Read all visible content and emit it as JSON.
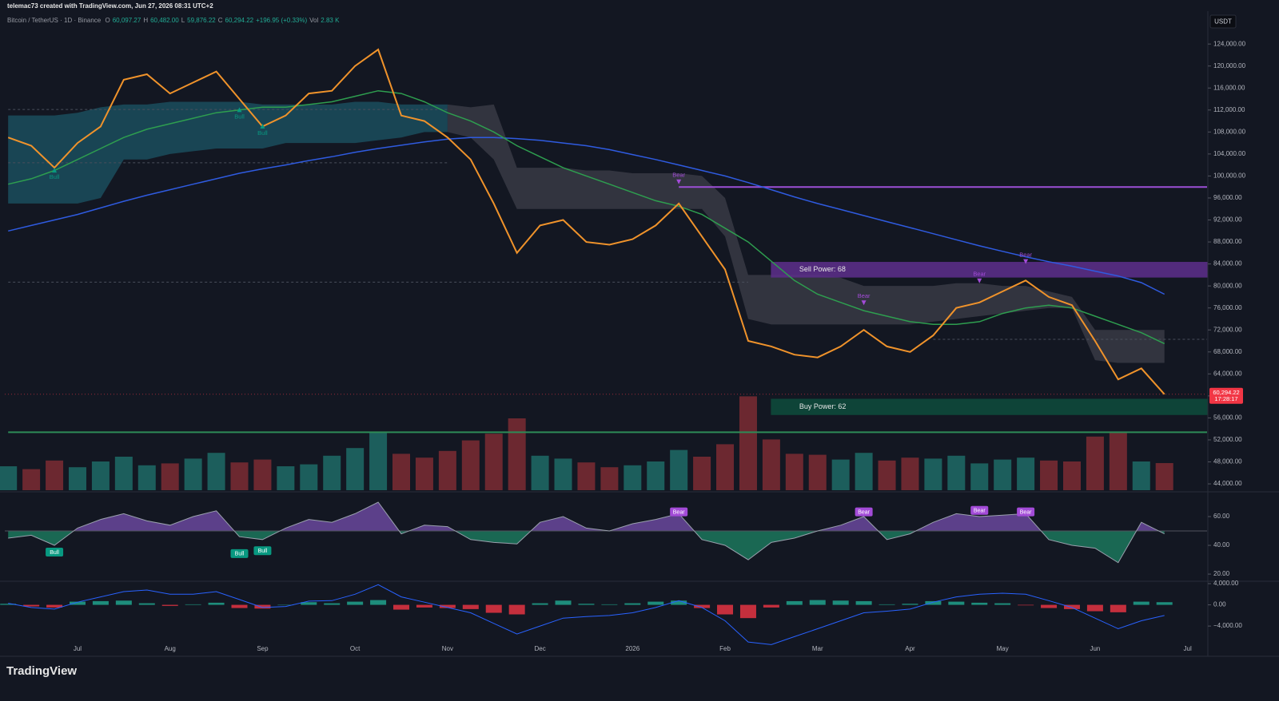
{
  "header": {
    "watermark": "telemac73 created with TradingView.com, Jun 27, 2026 08:31 UTC+2",
    "symbol": "Bitcoin / TetherUS · 1D · Binance",
    "ohlc": [
      {
        "label": "O",
        "value": "60,097.27"
      },
      {
        "label": "H",
        "value": "60,482.00"
      },
      {
        "label": "L",
        "value": "59,876.22"
      },
      {
        "label": "C",
        "value": "60,294.22"
      }
    ],
    "change": "+196.95 (+0.33%)",
    "volume_label": "Vol",
    "volume_value": "2.83 K"
  },
  "logo": "TradingView",
  "chart_data": [
    {
      "type": "line",
      "unit": "USDT",
      "categories": [
        null,
        null,
        null,
        "Jul",
        null,
        null,
        null,
        "Aug",
        null,
        null,
        null,
        "Sep",
        null,
        null,
        null,
        "Oct",
        null,
        null,
        null,
        "Nov",
        null,
        null,
        null,
        "Dec",
        null,
        null,
        null,
        "2026",
        null,
        null,
        null,
        "Feb",
        null,
        null,
        null,
        "Mar",
        null,
        null,
        null,
        "Apr",
        null,
        null,
        null,
        "May",
        null,
        null,
        null,
        "Jun",
        null,
        null,
        null,
        "Jul"
      ],
      "series": [
        {
          "color": "#f0932b",
          "values": [
            107000,
            105500,
            101500,
            106000,
            109000,
            117500,
            118500,
            115000,
            117000,
            119000,
            114000,
            109000,
            111000,
            115000,
            115500,
            120000,
            123000,
            111000,
            110000,
            107000,
            103000,
            95000,
            86000,
            91000,
            92000,
            88000,
            87500,
            88500,
            91000,
            95000,
            89000,
            83000,
            70000,
            69000,
            67500,
            67000,
            69000,
            72000,
            69000,
            68000,
            71000,
            76000,
            77000,
            79000,
            81000,
            78000,
            76500,
            70000,
            63000,
            65000,
            60300,
            null
          ]
        },
        {
          "color": "#2e9e4f",
          "values": [
            98500,
            99500,
            101000,
            103000,
            105000,
            107000,
            108500,
            109500,
            110500,
            111500,
            112000,
            112500,
            112500,
            113000,
            113500,
            114500,
            115500,
            115000,
            113500,
            111500,
            110000,
            108000,
            105500,
            103500,
            101500,
            100000,
            98500,
            97000,
            95500,
            94500,
            93000,
            90500,
            88000,
            84500,
            81000,
            78500,
            77000,
            75500,
            74500,
            73500,
            73000,
            73000,
            73500,
            75000,
            76000,
            76500,
            76000,
            74500,
            73000,
            71500,
            69500,
            null
          ]
        },
        {
          "color": "#2f5be0",
          "values": [
            90000,
            91000,
            92000,
            93000,
            94200,
            95400,
            96500,
            97500,
            98500,
            99500,
            100500,
            101300,
            102000,
            102800,
            103500,
            104300,
            105000,
            105600,
            106200,
            106700,
            107000,
            107000,
            106800,
            106500,
            106000,
            105500,
            104800,
            103900,
            103000,
            102000,
            101000,
            100000,
            98800,
            97500,
            96200,
            95000,
            93900,
            92800,
            91700,
            90600,
            89500,
            88400,
            87300,
            86300,
            85300,
            84400,
            83600,
            82700,
            81800,
            80600,
            78500,
            null
          ]
        }
      ],
      "bands": [
        {
          "color": "#1c5566",
          "upper": [
            111000,
            111000,
            111000,
            111500,
            112500,
            113000,
            113000,
            113500,
            113500,
            113500,
            113500,
            113000,
            113000,
            113000,
            113000,
            113500,
            113500,
            113000,
            113000,
            113000,
            null,
            null,
            null,
            null,
            null,
            null,
            null,
            null,
            null,
            null,
            null,
            null,
            null,
            null,
            null,
            null,
            null,
            null,
            null,
            null,
            null,
            null,
            null,
            null,
            null,
            null,
            null,
            null,
            null,
            null,
            null,
            null
          ],
          "lower": [
            95000,
            95000,
            95000,
            95000,
            96000,
            103000,
            103000,
            104000,
            104500,
            105000,
            105000,
            105000,
            106000,
            106000,
            106000,
            106000,
            106500,
            107000,
            108000,
            108000,
            null,
            null,
            null,
            null,
            null,
            null,
            null,
            null,
            null,
            null,
            null,
            null,
            null,
            null,
            null,
            null,
            null,
            null,
            null,
            null,
            null,
            null,
            null,
            null,
            null,
            null,
            null,
            null,
            null,
            null,
            null,
            null
          ]
        },
        {
          "color": "#3d3f4a",
          "upper": [
            null,
            null,
            null,
            null,
            null,
            null,
            null,
            null,
            null,
            null,
            null,
            null,
            null,
            null,
            null,
            null,
            null,
            null,
            null,
            113000,
            112500,
            113000,
            101500,
            101500,
            101500,
            101000,
            101000,
            100500,
            100500,
            100500,
            100000,
            96000,
            82000,
            82000,
            82000,
            82000,
            81500,
            80000,
            80000,
            80000,
            80000,
            80500,
            80500,
            80000,
            80000,
            79000,
            78000,
            72000,
            72000,
            72000,
            72000,
            null
          ],
          "lower": [
            null,
            null,
            null,
            null,
            null,
            null,
            null,
            null,
            null,
            null,
            null,
            null,
            null,
            null,
            null,
            null,
            null,
            null,
            null,
            108000,
            107000,
            103000,
            94000,
            94000,
            94000,
            94000,
            94000,
            94000,
            94000,
            94000,
            94000,
            89000,
            74000,
            73000,
            73000,
            73000,
            73000,
            73000,
            73000,
            73000,
            73500,
            74000,
            74500,
            75000,
            75500,
            76000,
            76000,
            66500,
            66000,
            66000,
            66000,
            null
          ]
        }
      ],
      "levels": [
        {
          "price": 98000,
          "color": "#9c4fd6",
          "from_index": 29,
          "to_index": 52,
          "style": "solid"
        },
        {
          "price": 53400,
          "color": "#2e8b57",
          "from_index": 0,
          "to_index": 52,
          "style": "solid"
        },
        {
          "price": 112100,
          "color": "#4a4f5c",
          "from_index": 0,
          "to_index": 19,
          "style": "dashed"
        },
        {
          "price": 102400,
          "color": "#4a4f5c",
          "from_index": 0,
          "to_index": 19,
          "style": "dashed"
        },
        {
          "price": 80700,
          "color": "#4a4f5c",
          "from_index": 0,
          "to_index": 32,
          "style": "dashed"
        },
        {
          "price": 70300,
          "color": "#4a4f5c",
          "from_index": 40,
          "to_index": 52,
          "style": "dashed"
        }
      ],
      "zones": [
        {
          "text": "Sell Power: 68",
          "low": 81600,
          "high": 84300,
          "from_index": 33,
          "color": "#5e2f8c"
        },
        {
          "text": "Buy Power: 62",
          "low": 56600,
          "high": 59400,
          "from_index": 33,
          "color": "#0e4d3c"
        }
      ],
      "signals": [
        {
          "text": "Bull",
          "index": 2,
          "price": 101500,
          "rsi": 35,
          "color": "#089981"
        },
        {
          "text": "Bull",
          "index": 10,
          "price": 112500,
          "rsi": 34,
          "color": "#089981"
        },
        {
          "text": "Bull",
          "index": 11,
          "price": 109500,
          "rsi": 36,
          "color": "#089981"
        },
        {
          "text": "Bear",
          "index": 29,
          "price": 98500,
          "rsi": 63,
          "color": "#a34bd8"
        },
        {
          "text": "Bear",
          "index": 37,
          "price": 76500,
          "rsi": 63,
          "color": "#a34bd8"
        },
        {
          "text": "Bear",
          "index": 42,
          "price": 80500,
          "rsi": 64,
          "color": "#a34bd8"
        },
        {
          "text": "Bear",
          "index": 44,
          "price": 84000,
          "rsi": 63,
          "color": "#a34bd8"
        }
      ],
      "volume": [
        2.5,
        2.2,
        3.1,
        2.4,
        3.0,
        3.5,
        2.6,
        2.8,
        3.3,
        3.9,
        2.9,
        3.2,
        2.5,
        2.7,
        3.6,
        4.4,
        6.0,
        3.8,
        3.4,
        4.1,
        5.2,
        5.9,
        7.5,
        3.6,
        3.3,
        2.9,
        2.4,
        2.6,
        3.0,
        4.2,
        3.5,
        4.8,
        9.8,
        5.3,
        3.8,
        3.7,
        3.2,
        3.9,
        3.1,
        3.4,
        3.3,
        3.6,
        2.8,
        3.2,
        3.4,
        3.1,
        3.0,
        5.6,
        6.0,
        3.0,
        2.83,
        null
      ],
      "last_price_label": "60,294.22",
      "countdown": "17:28:17",
      "ylim": [
        42700,
        126200
      ],
      "yticks": [
        {
          "value": 44000,
          "label": "44,000.00"
        },
        {
          "value": 48000,
          "label": "48,000.00"
        },
        {
          "value": 52000,
          "label": "52,000.00"
        },
        {
          "value": 56000,
          "label": "56,000.00"
        },
        {
          "value": 60000,
          "label": "60,000.00"
        },
        {
          "value": 64000,
          "label": "64,000.00"
        },
        {
          "value": 68000,
          "label": "68,000.00"
        },
        {
          "value": 72000,
          "label": "72,000.00"
        },
        {
          "value": 76000,
          "label": "76,000.00"
        },
        {
          "value": 80000,
          "label": "80,000.00"
        },
        {
          "value": 84000,
          "label": "84,000.00"
        },
        {
          "value": 88000,
          "label": "88,000.00"
        },
        {
          "value": 92000,
          "label": "92,000.00"
        },
        {
          "value": 96000,
          "label": "96,000.00"
        },
        {
          "value": 100000,
          "label": "100,000.00"
        },
        {
          "value": 104000,
          "label": "104,000.00"
        },
        {
          "value": 108000,
          "label": "108,000.00"
        },
        {
          "value": 112000,
          "label": "112,000.00"
        },
        {
          "value": 116000,
          "label": "116,000.00"
        },
        {
          "value": 120000,
          "label": "120,000.00"
        },
        {
          "value": 124000,
          "label": "124,000.00"
        }
      ]
    },
    {
      "type": "oscillator",
      "values": [
        45,
        47,
        40,
        52,
        58,
        62,
        57,
        54,
        60,
        64,
        46,
        44,
        52,
        58,
        56,
        62,
        70,
        48,
        54,
        53,
        44,
        42,
        41,
        56,
        60,
        52,
        50,
        55,
        58,
        62,
        44,
        40,
        30,
        42,
        45,
        50,
        54,
        60,
        44,
        48,
        56,
        62,
        60,
        61,
        62,
        44,
        40,
        38,
        28,
        56,
        48,
        null
      ],
      "midline": 50,
      "up_color": "#8e5bd0",
      "down_color": "#1f9e74",
      "line_color": "#9aa0ad",
      "ylim": [
        15.6,
        76.1
      ],
      "yticks": [
        {
          "value": 20,
          "label": "20.00"
        },
        {
          "value": 40,
          "label": "40.00"
        },
        {
          "value": 60,
          "label": "60.00"
        }
      ]
    },
    {
      "type": "macd",
      "values": [
        300,
        -500,
        -800,
        500,
        1500,
        2500,
        2800,
        2000,
        2000,
        2500,
        1000,
        -500,
        -300,
        700,
        800,
        2000,
        3800,
        1500,
        500,
        -500,
        -1500,
        -3500,
        -5500,
        -4000,
        -2500,
        -2200,
        -2000,
        -1500,
        -500,
        800,
        -500,
        -3000,
        -7000,
        -7500,
        -6000,
        -4500,
        -3000,
        -1500,
        -1200,
        -800,
        500,
        1500,
        2000,
        2200,
        2000,
        800,
        -500,
        -2500,
        -4500,
        -3000,
        -2000,
        null
      ],
      "histogram": [
        200,
        -300,
        -500,
        600,
        700,
        800,
        300,
        -200,
        100,
        400,
        -600,
        -700,
        0,
        500,
        300,
        600,
        900,
        -900,
        -500,
        -600,
        -800,
        -1500,
        -1800,
        300,
        800,
        200,
        100,
        300,
        600,
        800,
        -600,
        -1800,
        -2500,
        -500,
        700,
        900,
        800,
        700,
        100,
        200,
        700,
        600,
        400,
        300,
        -100,
        -600,
        -800,
        -1200,
        -1400,
        600,
        500,
        null
      ],
      "line_color": "#2962ff",
      "up_color": "#22ab94",
      "down_color": "#f23645",
      "ylim": [
        -9700,
        4300
      ],
      "yticks": [
        {
          "value": 4000,
          "label": "4,000.00"
        },
        {
          "value": 0,
          "label": "0.00"
        },
        {
          "value": -4000,
          "label": "−4,000.00"
        }
      ]
    }
  ]
}
